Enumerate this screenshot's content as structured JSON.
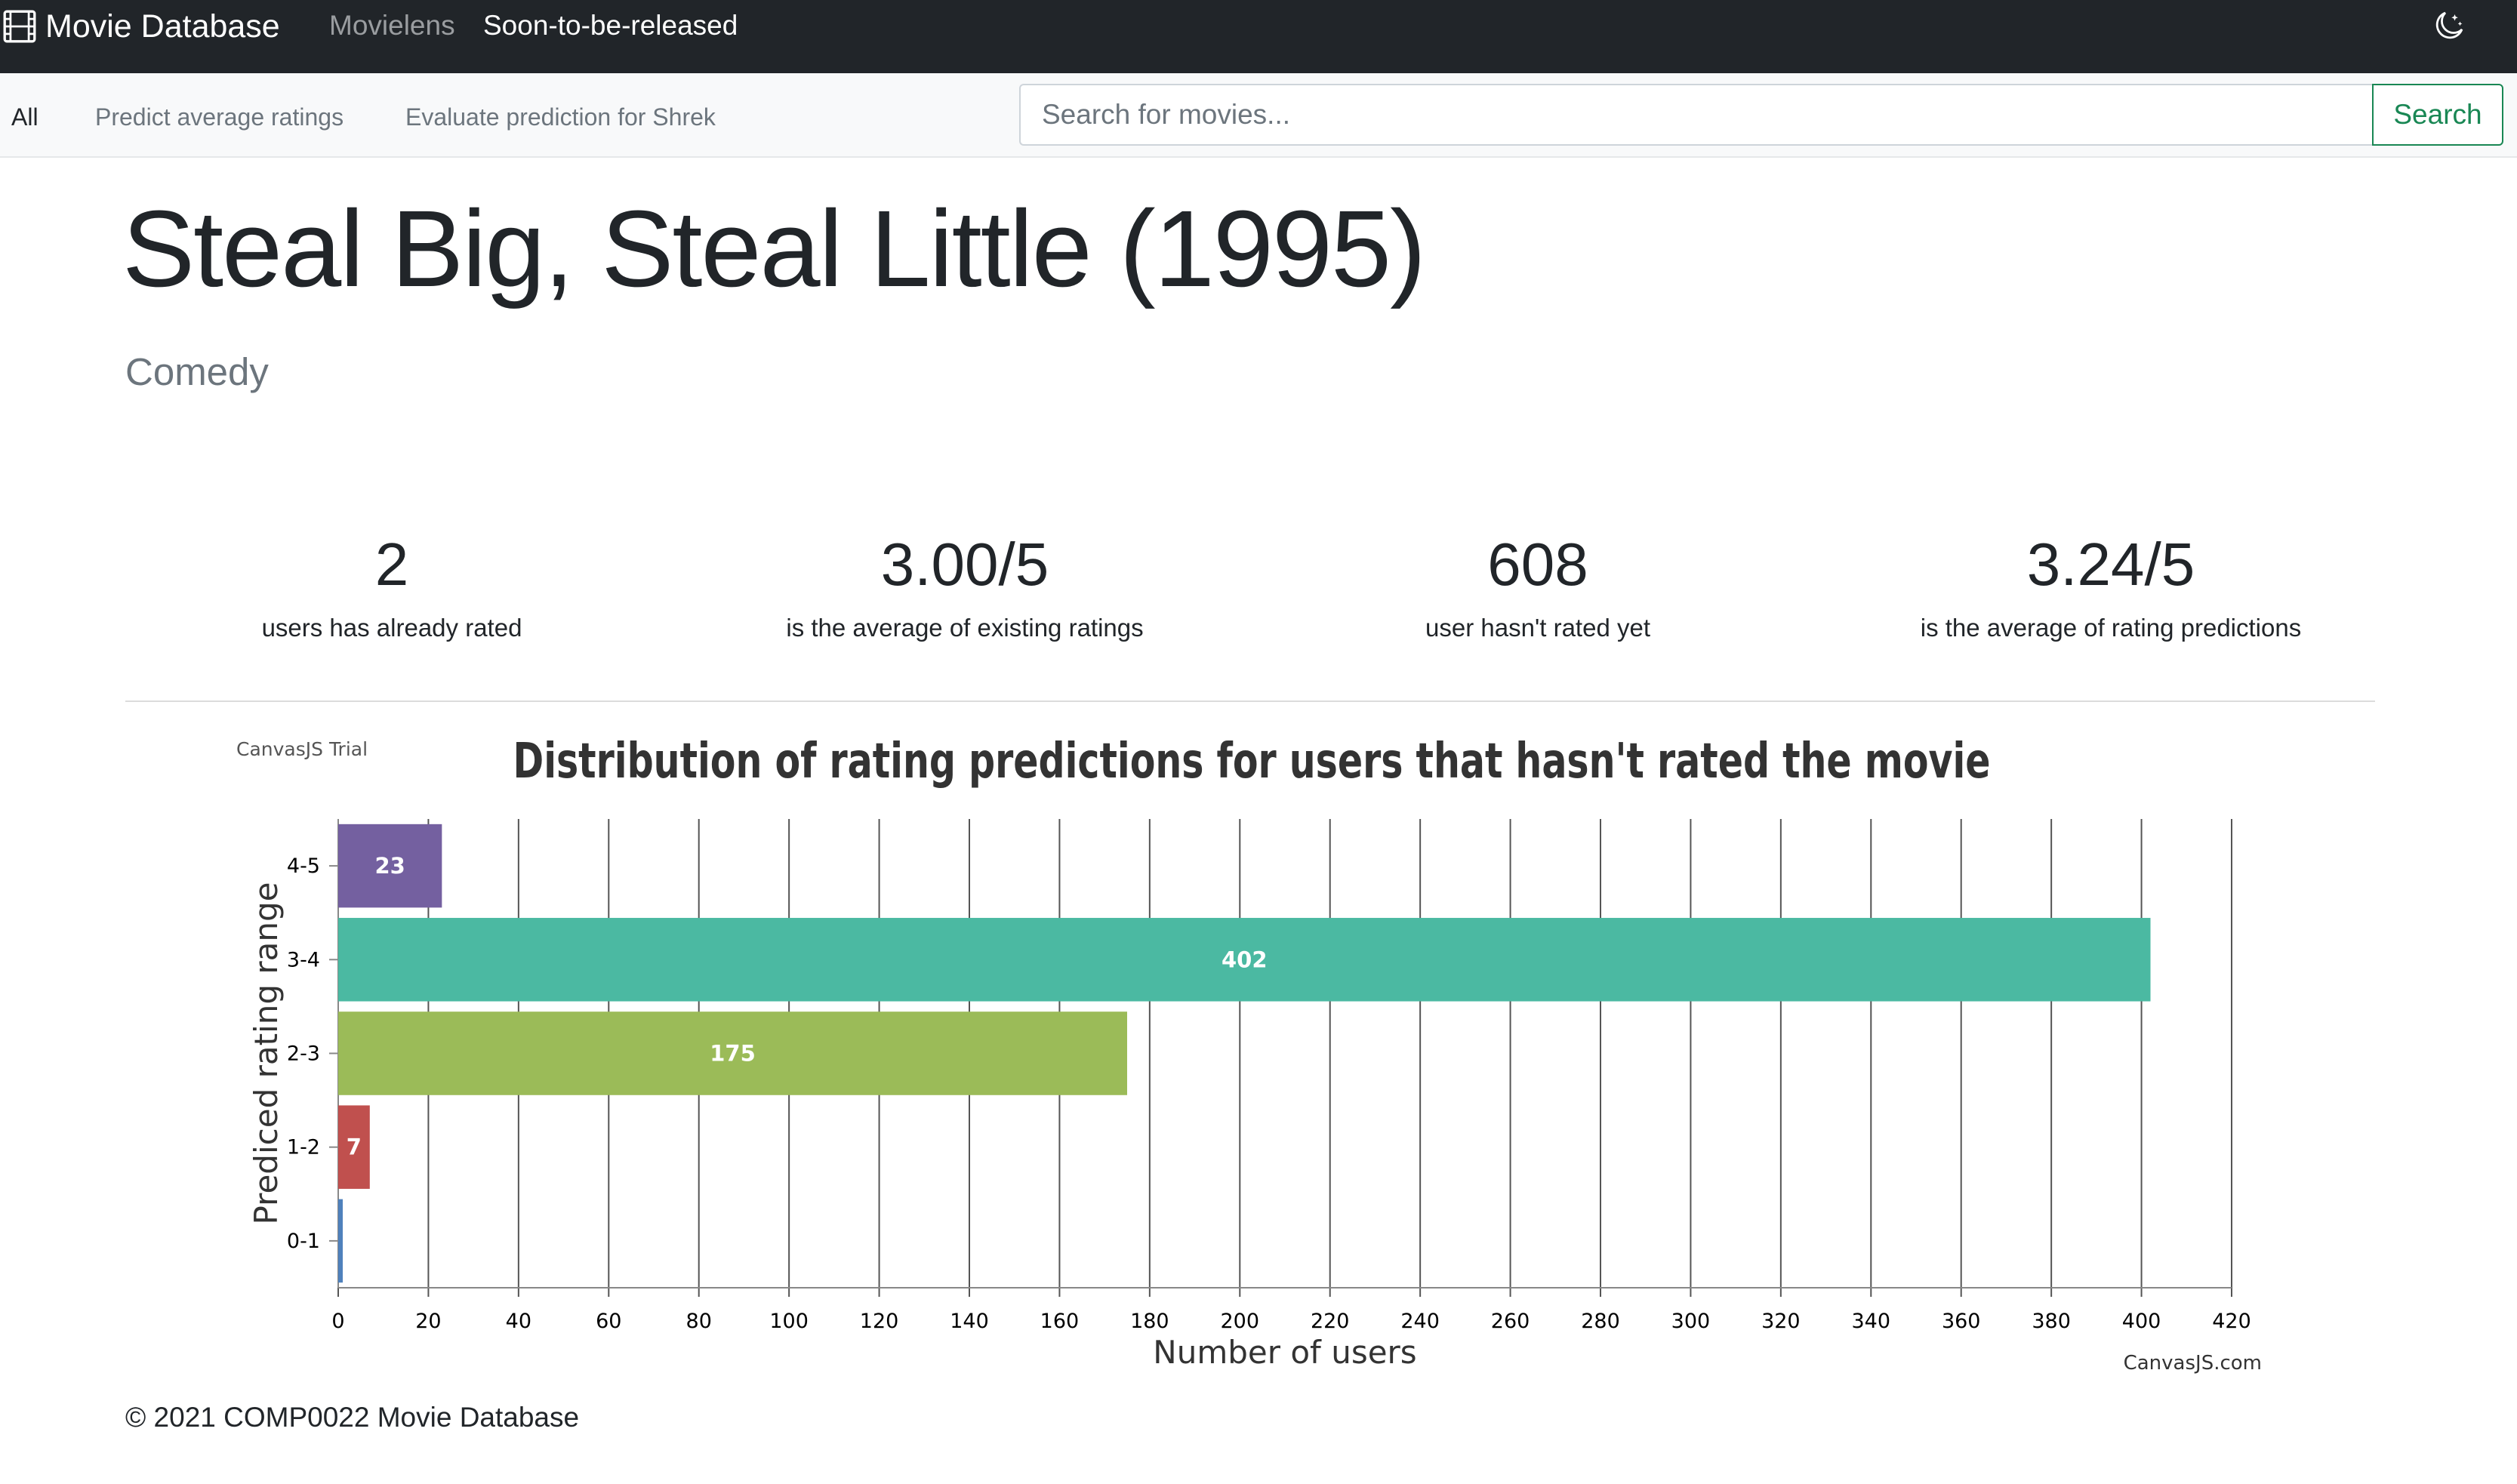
{
  "navbar": {
    "brand": "Movie Database",
    "brand_icon": "film-icon",
    "links": [
      {
        "label": "Movielens"
      },
      {
        "label": "Soon-to-be-released"
      }
    ],
    "theme_toggle_icon": "moon-stars-icon"
  },
  "subnav": {
    "items": [
      {
        "label": "All",
        "active": true
      },
      {
        "label": "Predict average ratings",
        "active": false
      },
      {
        "label": "Evaluate prediction for Shrek",
        "active": false
      }
    ],
    "search_placeholder": "Search for movies...",
    "search_value": "",
    "search_button": "Search"
  },
  "movie": {
    "title": "Steal Big, Steal Little (1995)",
    "genre": "Comedy"
  },
  "stats": [
    {
      "value": "2",
      "label": "users has already rated"
    },
    {
      "value": "3.00/5",
      "label": "is the average of existing ratings"
    },
    {
      "value": "608",
      "label": "user hasn't rated yet"
    },
    {
      "value": "3.24/5",
      "label": "is the average of rating predictions"
    }
  ],
  "chart_data": {
    "type": "bar",
    "orientation": "horizontal",
    "title": "Distribution of rating predictions for users that hasn't rated the movie",
    "xlabel": "Number of users",
    "ylabel": "Prediced rating range",
    "categories": [
      "0-1",
      "1-2",
      "2-3",
      "3-4",
      "4-5"
    ],
    "values": [
      1,
      7,
      175,
      402,
      23
    ],
    "data_labels": [
      "",
      "7",
      "175",
      "402",
      "23"
    ],
    "colors": [
      "#4f81bc",
      "#c0504e",
      "#9bbb58",
      "#4bb9a2",
      "#7460a0"
    ],
    "xlim": [
      0,
      420
    ],
    "xticks": [
      0,
      20,
      40,
      60,
      80,
      100,
      120,
      140,
      160,
      180,
      200,
      220,
      240,
      260,
      280,
      300,
      320,
      340,
      360,
      380,
      400,
      420
    ],
    "grid": true,
    "legend": "none",
    "watermark_top": "CanvasJS Trial",
    "watermark_bottom": "CanvasJS.com"
  },
  "footer": {
    "text": "© 2021 COMP0022 Movie Database"
  },
  "colors": {
    "navbar_bg": "#212529",
    "subnav_bg": "#f8f9fa",
    "search_button": "#198754"
  }
}
